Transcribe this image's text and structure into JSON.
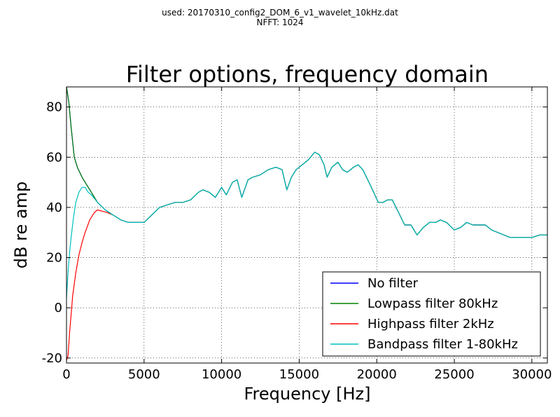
{
  "header": {
    "line1": "used: 20170310_config2_DOM_6_v1_wavelet_10kHz.dat",
    "line2": "NFFT: 1024"
  },
  "chart_data": {
    "type": "line",
    "title": "Filter options, frequency domain",
    "xlabel": "Frequency [Hz]",
    "ylabel": "dB re amp",
    "xlim": [
      0,
      31000
    ],
    "ylim": [
      -22,
      88
    ],
    "xticks": [
      0,
      5000,
      10000,
      15000,
      20000,
      25000,
      30000
    ],
    "yticks": [
      -20,
      0,
      20,
      40,
      60,
      80
    ],
    "grid": true,
    "legend_position": "bottom-right",
    "series": [
      {
        "name": "No filter",
        "color": "#0000ff",
        "x": [
          0,
          150,
          300,
          500,
          700,
          1000,
          1300,
          1600,
          2000,
          2500,
          3000,
          3500,
          4000,
          4500,
          5000,
          5500,
          6000,
          6500,
          7000,
          7500,
          8000,
          8500,
          8800,
          9200,
          9600,
          10000,
          10300,
          10700,
          11000,
          11300,
          11700,
          12000,
          12500,
          13000,
          13500,
          13900,
          14200,
          14500,
          14800,
          15200,
          15600,
          16000,
          16300,
          16600,
          16800,
          17100,
          17500,
          17800,
          18100,
          18500,
          18800,
          19100,
          19500,
          19800,
          20100,
          20400,
          20700,
          21000,
          21400,
          21800,
          22200,
          22600,
          23000,
          23400,
          23800,
          24100,
          24500,
          25000,
          25400,
          25800,
          26200,
          26600,
          27000,
          27400,
          27800,
          28200,
          28600,
          29000,
          29500,
          30000,
          30500,
          31000
        ],
        "y": [
          88,
          82,
          72,
          60,
          56,
          52,
          49,
          46,
          42,
          39,
          37,
          35,
          34,
          34,
          34,
          37,
          40,
          41,
          42,
          42,
          43,
          46,
          47,
          46,
          44,
          48,
          45,
          50,
          51,
          44,
          51,
          52,
          53,
          55,
          56,
          55,
          47,
          52,
          55,
          57,
          59,
          62,
          61,
          57,
          52,
          56,
          58,
          55,
          54,
          56,
          57,
          55,
          50,
          46,
          42,
          42,
          43,
          43,
          38,
          33,
          33,
          29,
          32,
          34,
          34,
          35,
          34,
          31,
          32,
          34,
          33,
          33,
          33,
          31,
          30,
          29,
          28,
          28,
          28,
          28,
          29,
          29
        ]
      },
      {
        "name": "Lowpass filter 80kHz",
        "color": "#008000",
        "x": [
          0,
          150,
          300,
          500,
          700,
          1000,
          1300,
          1600,
          2000,
          2500,
          3000,
          3500,
          4000,
          4500,
          5000,
          5500,
          6000,
          6500,
          7000,
          7500,
          8000,
          8500,
          8800,
          9200,
          9600,
          10000,
          10300,
          10700,
          11000,
          11300,
          11700,
          12000,
          12500,
          13000,
          13500,
          13900,
          14200,
          14500,
          14800,
          15200,
          15600,
          16000,
          16300,
          16600,
          16800,
          17100,
          17500,
          17800,
          18100,
          18500,
          18800,
          19100,
          19500,
          19800,
          20100,
          20400,
          20700,
          21000,
          21400,
          21800,
          22200,
          22600,
          23000,
          23400,
          23800,
          24100,
          24500,
          25000,
          25400,
          25800,
          26200,
          26600,
          27000,
          27400,
          27800,
          28200,
          28600,
          29000,
          29500,
          30000,
          30500,
          31000
        ],
        "y": [
          88,
          82,
          72,
          60,
          56,
          52,
          49,
          46,
          42,
          39,
          37,
          35,
          34,
          34,
          34,
          37,
          40,
          41,
          42,
          42,
          43,
          46,
          47,
          46,
          44,
          48,
          45,
          50,
          51,
          44,
          51,
          52,
          53,
          55,
          56,
          55,
          47,
          52,
          55,
          57,
          59,
          62,
          61,
          57,
          52,
          56,
          58,
          55,
          54,
          56,
          57,
          55,
          50,
          46,
          42,
          42,
          43,
          43,
          38,
          33,
          33,
          29,
          32,
          34,
          34,
          35,
          34,
          31,
          32,
          34,
          33,
          33,
          33,
          31,
          30,
          29,
          28,
          28,
          28,
          28,
          29,
          29
        ]
      },
      {
        "name": "Highpass filter 2kHz",
        "color": "#ff0000",
        "x": [
          0,
          100,
          200,
          400,
          600,
          800,
          1000,
          1200,
          1500,
          1800,
          2000,
          2300,
          2600,
          3000,
          3500,
          4000,
          4500,
          5000,
          5500,
          6000,
          6500,
          7000,
          7500,
          8000,
          8500,
          8800,
          9200,
          9600,
          10000,
          10300,
          10700,
          11000,
          11300,
          11700,
          12000,
          12500,
          13000,
          13500,
          13900,
          14200,
          14500,
          14800,
          15200,
          15600,
          16000,
          16300,
          16600,
          16800,
          17100,
          17500,
          17800,
          18100,
          18500,
          18800,
          19100,
          19500,
          19800,
          20100,
          20400,
          20700,
          21000,
          21400,
          21800,
          22200,
          22600,
          23000,
          23400,
          23800,
          24100,
          24500,
          25000,
          25400,
          25800,
          26200,
          26600,
          27000,
          27400,
          27800,
          28200,
          28600,
          29000,
          29500,
          30000,
          30500,
          31000
        ],
        "y": [
          -21,
          -19,
          -10,
          5,
          14,
          21,
          26,
          30,
          35,
          38,
          39,
          38.5,
          38,
          37,
          35,
          34,
          34,
          34,
          37,
          40,
          41,
          42,
          42,
          43,
          46,
          47,
          46,
          44,
          48,
          45,
          50,
          51,
          44,
          51,
          52,
          53,
          55,
          56,
          55,
          47,
          52,
          55,
          57,
          59,
          62,
          61,
          57,
          52,
          56,
          58,
          55,
          54,
          56,
          57,
          55,
          50,
          46,
          42,
          42,
          43,
          43,
          38,
          33,
          33,
          29,
          32,
          34,
          34,
          35,
          34,
          31,
          32,
          34,
          33,
          33,
          33,
          31,
          30,
          29,
          28,
          28,
          28,
          28,
          29,
          29
        ]
      },
      {
        "name": "Bandpass filter 1-80kHz",
        "color": "#00bfbf",
        "x": [
          0,
          100,
          200,
          300,
          450,
          600,
          800,
          1000,
          1200,
          1400,
          1600,
          2000,
          2500,
          3000,
          3500,
          4000,
          4500,
          5000,
          5500,
          6000,
          6500,
          7000,
          7500,
          8000,
          8500,
          8800,
          9200,
          9600,
          10000,
          10300,
          10700,
          11000,
          11300,
          11700,
          12000,
          12500,
          13000,
          13500,
          13900,
          14200,
          14500,
          14800,
          15200,
          15600,
          16000,
          16300,
          16600,
          16800,
          17100,
          17500,
          17800,
          18100,
          18500,
          18800,
          19100,
          19500,
          19800,
          20100,
          20400,
          20700,
          21000,
          21400,
          21800,
          22200,
          22600,
          23000,
          23400,
          23800,
          24100,
          24500,
          25000,
          25400,
          25800,
          26200,
          26600,
          27000,
          27400,
          27800,
          28200,
          28600,
          29000,
          29500,
          30000,
          30500,
          31000
        ],
        "y": [
          4,
          14,
          22,
          28,
          36,
          42,
          46,
          48,
          48,
          46,
          45,
          42,
          39,
          37,
          35,
          34,
          34,
          34,
          37,
          40,
          41,
          42,
          42,
          43,
          46,
          47,
          46,
          44,
          48,
          45,
          50,
          51,
          44,
          51,
          52,
          53,
          55,
          56,
          55,
          47,
          52,
          55,
          57,
          59,
          62,
          61,
          57,
          52,
          56,
          58,
          55,
          54,
          56,
          57,
          55,
          50,
          46,
          42,
          42,
          43,
          43,
          38,
          33,
          33,
          29,
          32,
          34,
          34,
          35,
          34,
          31,
          32,
          34,
          33,
          33,
          33,
          31,
          30,
          29,
          28,
          28,
          28,
          28,
          29,
          29
        ]
      }
    ]
  }
}
